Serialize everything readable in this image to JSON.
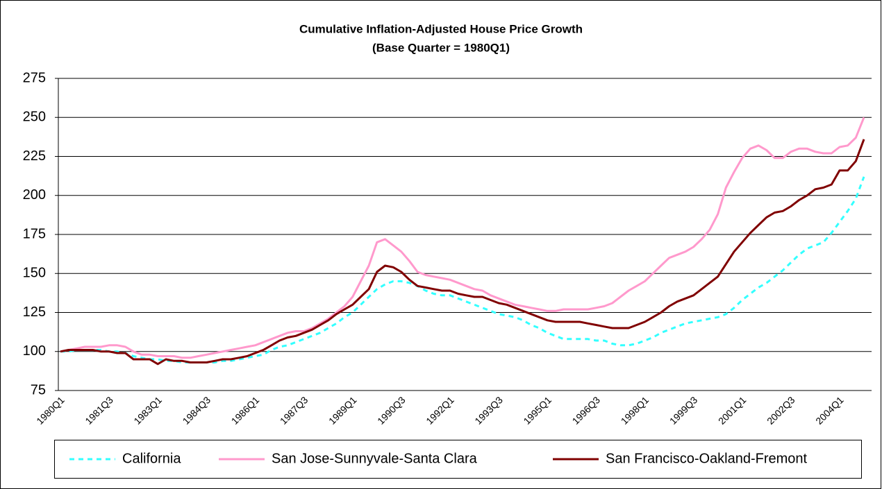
{
  "chart_data": {
    "type": "line",
    "title": "Cumulative Inflation-Adjusted House Price Growth",
    "subtitle": "(Base Quarter = 1980Q1)",
    "categories": [
      "1980Q1",
      null,
      null,
      null,
      null,
      null,
      "1981Q3",
      null,
      null,
      null,
      null,
      null,
      "1983Q1",
      null,
      null,
      null,
      null,
      null,
      "1984Q3",
      null,
      null,
      null,
      null,
      null,
      "1986Q1",
      null,
      null,
      null,
      null,
      null,
      "1987Q3",
      null,
      null,
      null,
      null,
      null,
      "1989Q1",
      null,
      null,
      null,
      null,
      null,
      "1990Q3",
      null,
      null,
      null,
      null,
      null,
      "1992Q1",
      null,
      null,
      null,
      null,
      null,
      "1993Q3",
      null,
      null,
      null,
      null,
      null,
      "1995Q1",
      null,
      null,
      null,
      null,
      null,
      "1996Q3",
      null,
      null,
      null,
      null,
      null,
      "1998Q1",
      null,
      null,
      null,
      null,
      null,
      "1999Q3",
      null,
      null,
      null,
      null,
      null,
      "2001Q1",
      null,
      null,
      null,
      null,
      null,
      "2002Q3",
      null,
      null,
      null,
      null,
      null,
      "2004Q1",
      null,
      null,
      null
    ],
    "series": [
      {
        "name": "California",
        "color": "#33ffff",
        "dash": true,
        "values": [
          100,
          100,
          101,
          101,
          101,
          101,
          100,
          100,
          99,
          97,
          96,
          95,
          95,
          94,
          94,
          93,
          93,
          93,
          93,
          93,
          94,
          94,
          95,
          96,
          97,
          98,
          101,
          103,
          104,
          106,
          108,
          110,
          112,
          115,
          118,
          122,
          125,
          130,
          135,
          140,
          143,
          145,
          145,
          144,
          142,
          139,
          137,
          136,
          136,
          134,
          132,
          130,
          128,
          126,
          124,
          123,
          122,
          120,
          117,
          115,
          112,
          110,
          108,
          108,
          108,
          108,
          107,
          107,
          105,
          104,
          104,
          105,
          107,
          109,
          112,
          114,
          116,
          118,
          119,
          120,
          121,
          122,
          124,
          128,
          133,
          137,
          141,
          144,
          148,
          152,
          157,
          162,
          166,
          168,
          170,
          176,
          183,
          190,
          198,
          212
        ]
      },
      {
        "name": "San Jose-Sunnyvale-Santa Clara",
        "color": "#ff99cc",
        "dash": false,
        "values": [
          100,
          101,
          102,
          103,
          103,
          103,
          104,
          104,
          103,
          100,
          98,
          98,
          97,
          97,
          97,
          96,
          96,
          97,
          98,
          99,
          100,
          101,
          102,
          103,
          104,
          106,
          108,
          110,
          112,
          113,
          113,
          115,
          118,
          121,
          125,
          129,
          135,
          145,
          155,
          170,
          172,
          168,
          164,
          158,
          151,
          149,
          148,
          147,
          146,
          144,
          142,
          140,
          139,
          136,
          134,
          132,
          130,
          129,
          128,
          127,
          126,
          126,
          127,
          127,
          127,
          127,
          128,
          129,
          131,
          135,
          139,
          142,
          145,
          150,
          155,
          160,
          162,
          164,
          167,
          172,
          178,
          188,
          205,
          215,
          224,
          230,
          232,
          229,
          224,
          224,
          228,
          230,
          230,
          228,
          227,
          227,
          231,
          232,
          237,
          250
        ]
      },
      {
        "name": "San Francisco-Oakland-Fremont",
        "color": "#800000",
        "dash": false,
        "values": [
          100,
          101,
          101,
          101,
          101,
          100,
          100,
          99,
          99,
          95,
          95,
          95,
          92,
          95,
          94,
          94,
          93,
          93,
          93,
          94,
          95,
          95,
          96,
          97,
          99,
          101,
          104,
          107,
          109,
          110,
          112,
          114,
          117,
          120,
          124,
          127,
          130,
          135,
          140,
          151,
          155,
          154,
          151,
          146,
          142,
          141,
          140,
          139,
          139,
          137,
          136,
          135,
          135,
          133,
          131,
          130,
          128,
          126,
          124,
          122,
          120,
          119,
          119,
          119,
          119,
          118,
          117,
          116,
          115,
          115,
          115,
          117,
          119,
          122,
          125,
          129,
          132,
          134,
          136,
          140,
          144,
          148,
          156,
          164,
          170,
          176,
          181,
          186,
          189,
          190,
          193,
          197,
          200,
          204,
          205,
          207,
          216,
          216,
          222,
          236
        ]
      }
    ],
    "ylim": [
      75,
      275
    ],
    "yticks": [
      75,
      100,
      125,
      150,
      175,
      200,
      225,
      250,
      275
    ],
    "grid": true
  }
}
